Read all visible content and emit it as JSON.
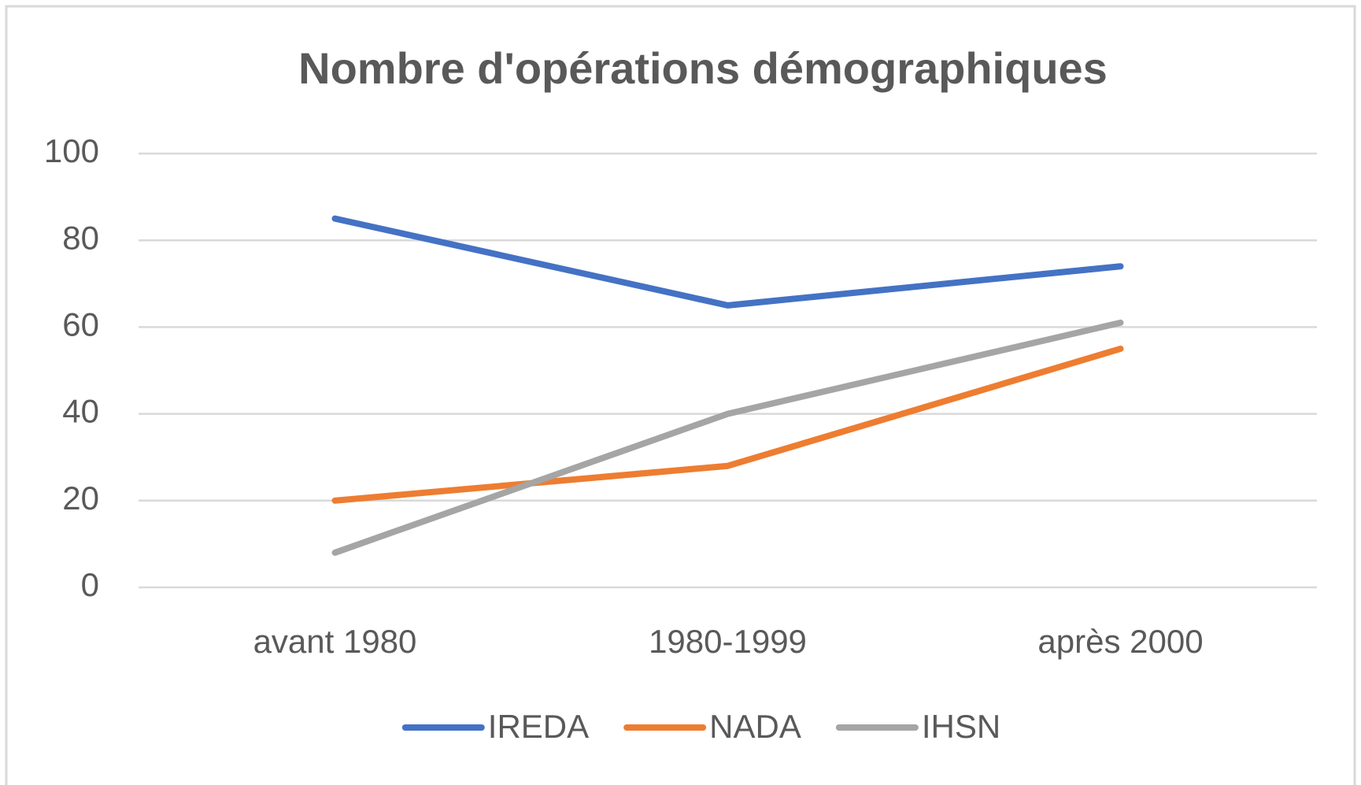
{
  "chart_data": {
    "type": "line",
    "title": "Nombre d'opérations démographiques",
    "categories": [
      "avant 1980",
      "1980-1999",
      "après 2000"
    ],
    "series": [
      {
        "name": "IREDA",
        "color": "#4472c4",
        "values": [
          85,
          65,
          74
        ]
      },
      {
        "name": "NADA",
        "color": "#ed7d31",
        "values": [
          20,
          28,
          55
        ]
      },
      {
        "name": "IHSN",
        "color": "#a5a5a5",
        "values": [
          8,
          40,
          61
        ]
      }
    ],
    "ylim": [
      0,
      100
    ],
    "yticks": [
      0,
      20,
      40,
      60,
      80,
      100
    ],
    "grid": true,
    "legend": "bottom"
  }
}
